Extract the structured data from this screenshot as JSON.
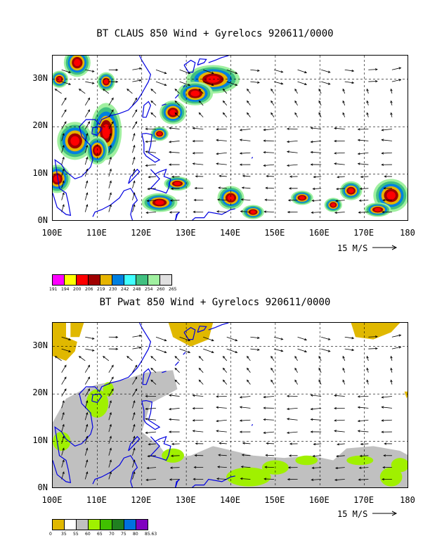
{
  "panel1": {
    "title": "BT CLAUS 850 Wind + Gyrelocs 920611/0000",
    "y_ticks": [
      "30N",
      "20N",
      "10N",
      "0N"
    ],
    "x_ticks": [
      "100E",
      "110E",
      "120E",
      "130E",
      "140E",
      "150E",
      "160E",
      "170E",
      "180"
    ],
    "ref_vector": "15 M/S",
    "colorbar": {
      "labels": [
        "191",
        "194",
        "200",
        "206",
        "219",
        "230",
        "242",
        "248",
        "254",
        "260",
        "265"
      ],
      "colors": [
        "#ff00ff",
        "#ffff00",
        "#ff0000",
        "#a00000",
        "#e6b400",
        "#0080e0",
        "#40ffff",
        "#40c080",
        "#a0f0a0",
        "#e0e0e0"
      ]
    }
  },
  "panel2": {
    "title": "BT Pwat 850 Wind + Gyrelocs 920611/0000",
    "y_ticks": [
      "30N",
      "20N",
      "10N",
      "0N"
    ],
    "x_ticks": [
      "100E",
      "110E",
      "120E",
      "130E",
      "140E",
      "150E",
      "160E",
      "170E",
      "180"
    ],
    "ref_vector": "15 M/S",
    "colorbar": {
      "labels": [
        "0",
        "35",
        "55",
        "60",
        "65",
        "70",
        "75",
        "80",
        "85.63"
      ],
      "colors": [
        "#e0b800",
        "#ffffff",
        "#c0c0c0",
        "#a0f000",
        "#40c000",
        "#208020",
        "#0070e0",
        "#8000c0"
      ]
    }
  }
}
